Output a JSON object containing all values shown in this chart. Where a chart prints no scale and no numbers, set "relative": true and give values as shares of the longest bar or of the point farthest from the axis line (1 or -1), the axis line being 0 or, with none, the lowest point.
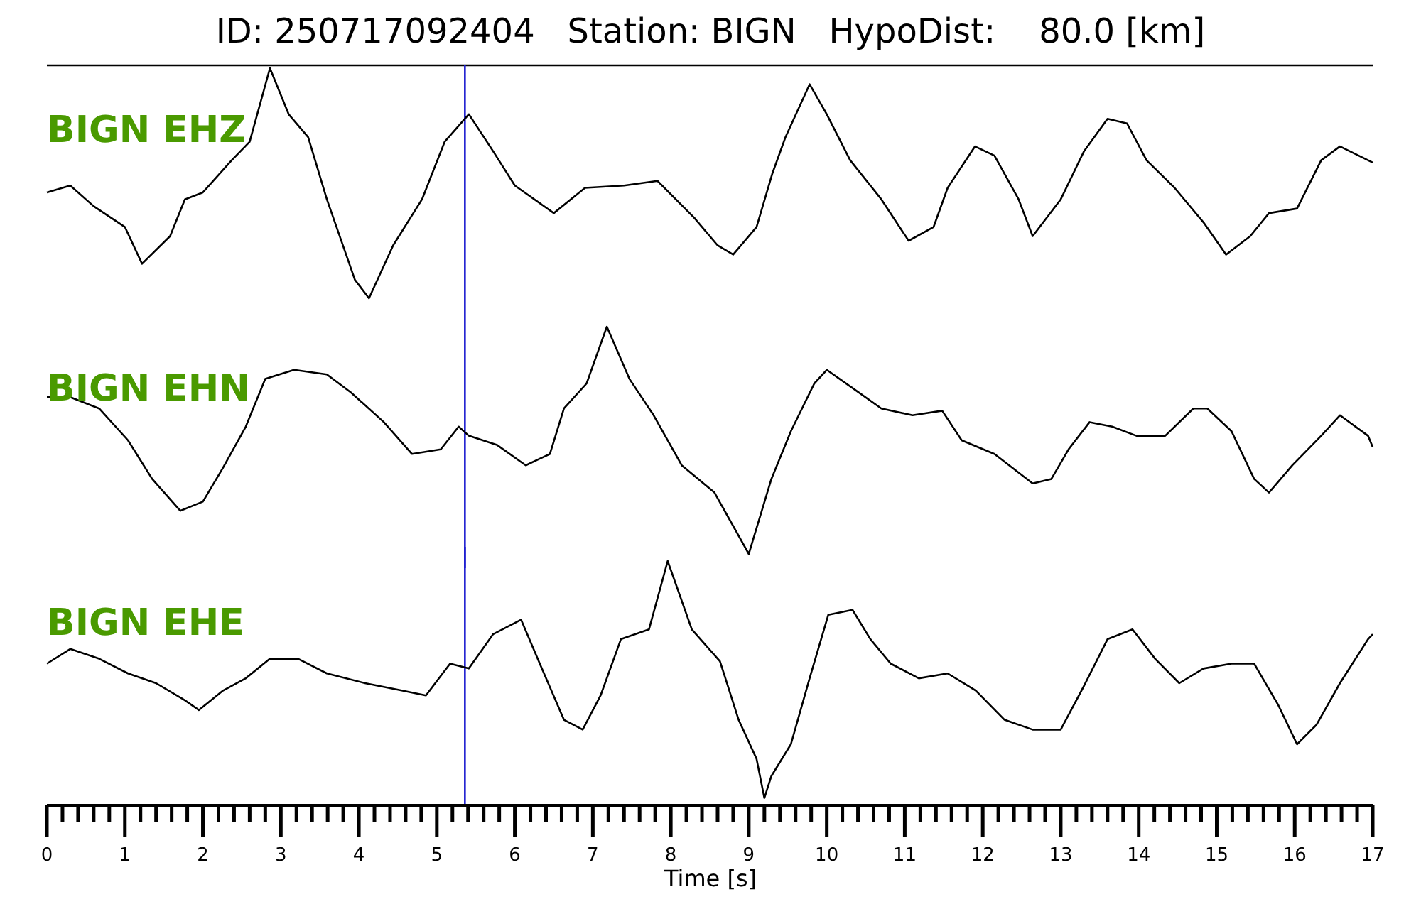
{
  "chart_data": [
    {
      "type": "line",
      "title": "ID: 250717092404   Station: BIGN   HypoDist:    80.0 [km]",
      "relative": true,
      "xlim": [
        0,
        17
      ],
      "tick_labels": false,
      "ref_lines": [
        {
          "axis": "x",
          "value": 5.36,
          "color": "#1f1fd0"
        }
      ],
      "series": [
        {
          "name": "BIGN EHZ",
          "color": "#000000",
          "x": [
            0,
            0.3,
            0.6,
            1.0,
            1.22,
            1.58,
            1.77,
            2.0,
            2.37,
            2.6,
            2.86,
            3.1,
            3.35,
            3.59,
            3.95,
            4.13,
            4.44,
            4.81,
            5.1,
            5.41,
            5.72,
            6.0,
            6.5,
            6.9,
            7.4,
            7.83,
            8.3,
            8.6,
            8.8,
            9.1,
            9.3,
            9.47,
            9.78,
            10.0,
            10.3,
            10.7,
            11.05,
            11.37,
            11.55,
            11.9,
            12.15,
            12.46,
            12.64,
            13.0,
            13.3,
            13.6,
            13.85,
            14.1,
            14.46,
            14.83,
            15.12,
            15.43,
            15.67,
            16.03,
            16.34,
            16.58,
            16.94,
            17
          ],
          "values": [
            0.46,
            0.49,
            0.4,
            0.31,
            0.15,
            0.27,
            0.43,
            0.46,
            0.6,
            0.68,
            1,
            0.8,
            0.7,
            0.43,
            0.08,
            0,
            0.23,
            0.43,
            0.68,
            0.8,
            0.64,
            0.49,
            0.37,
            0.48,
            0.49,
            0.51,
            0.35,
            0.23,
            0.19,
            0.31,
            0.54,
            0.7,
            0.93,
            0.8,
            0.6,
            0.43,
            0.25,
            0.31,
            0.48,
            0.66,
            0.62,
            0.43,
            0.27,
            0.43,
            0.64,
            0.78,
            0.76,
            0.6,
            0.48,
            0.33,
            0.19,
            0.27,
            0.37,
            0.39,
            0.6,
            0.66,
            0.6,
            0.59
          ]
        }
      ]
    },
    {
      "type": "line",
      "relative": true,
      "xlim": [
        0,
        17
      ],
      "tick_labels": false,
      "ref_lines": [
        {
          "axis": "x",
          "value": 5.36,
          "color": "#1f1fd0"
        }
      ],
      "series": [
        {
          "name": "BIGN EHN",
          "color": "#000000",
          "x": [
            0,
            0.3,
            0.67,
            1.04,
            1.35,
            1.71,
            2.0,
            2.26,
            2.55,
            2.8,
            3.17,
            3.59,
            3.9,
            4.32,
            4.68,
            5.05,
            5.28,
            5.41,
            5.77,
            6.14,
            6.45,
            6.63,
            6.92,
            7.18,
            7.47,
            7.78,
            8.14,
            8.56,
            9.0,
            9.29,
            9.54,
            9.84,
            10.0,
            10.33,
            10.7,
            11.1,
            11.48,
            11.73,
            12.15,
            12.64,
            12.88,
            13.1,
            13.37,
            13.66,
            13.97,
            14.34,
            14.7,
            14.88,
            15.19,
            15.48,
            15.67,
            15.97,
            16.34,
            16.58,
            16.94,
            17
          ],
          "values": [
            0.69,
            0.69,
            0.64,
            0.5,
            0.33,
            0.19,
            0.23,
            0.38,
            0.56,
            0.77,
            0.81,
            0.79,
            0.71,
            0.58,
            0.44,
            0.46,
            0.56,
            0.52,
            0.48,
            0.39,
            0.44,
            0.64,
            0.75,
            1,
            0.77,
            0.61,
            0.39,
            0.27,
            0,
            0.33,
            0.54,
            0.75,
            0.81,
            0.73,
            0.64,
            0.61,
            0.63,
            0.5,
            0.44,
            0.31,
            0.33,
            0.46,
            0.58,
            0.56,
            0.52,
            0.52,
            0.64,
            0.64,
            0.54,
            0.33,
            0.27,
            0.39,
            0.52,
            0.61,
            0.52,
            0.47
          ]
        }
      ]
    },
    {
      "type": "line",
      "relative": true,
      "xlim": [
        0,
        17
      ],
      "tick_labels": "x",
      "xlabel": "Time [s]",
      "xticks": [
        0,
        {
          "value": 0.2,
          "label": null
        },
        {
          "value": 0.4,
          "label": null
        },
        {
          "value": 0.6,
          "label": null
        },
        {
          "value": 0.8,
          "label": null
        },
        1,
        {
          "value": 1.2,
          "label": null
        },
        {
          "value": 1.4,
          "label": null
        },
        {
          "value": 1.6,
          "label": null
        },
        {
          "value": 1.8,
          "label": null
        },
        2,
        {
          "value": 2.2,
          "label": null
        },
        {
          "value": 2.4,
          "label": null
        },
        {
          "value": 2.6,
          "label": null
        },
        {
          "value": 2.8,
          "label": null
        },
        3,
        {
          "value": 3.2,
          "label": null
        },
        {
          "value": 3.4,
          "label": null
        },
        {
          "value": 3.6,
          "label": null
        },
        {
          "value": 3.8,
          "label": null
        },
        4,
        {
          "value": 4.2,
          "label": null
        },
        {
          "value": 4.4,
          "label": null
        },
        {
          "value": 4.6,
          "label": null
        },
        {
          "value": 4.8,
          "label": null
        },
        5,
        {
          "value": 5.2,
          "label": null
        },
        {
          "value": 5.4,
          "label": null
        },
        {
          "value": 5.6,
          "label": null
        },
        {
          "value": 5.8,
          "label": null
        },
        6,
        {
          "value": 6.2,
          "label": null
        },
        {
          "value": 6.4,
          "label": null
        },
        {
          "value": 6.6,
          "label": null
        },
        {
          "value": 6.8,
          "label": null
        },
        7,
        {
          "value": 7.2,
          "label": null
        },
        {
          "value": 7.4,
          "label": null
        },
        {
          "value": 7.6,
          "label": null
        },
        {
          "value": 7.8,
          "label": null
        },
        8,
        {
          "value": 8.2,
          "label": null
        },
        {
          "value": 8.4,
          "label": null
        },
        {
          "value": 8.6,
          "label": null
        },
        {
          "value": 8.8,
          "label": null
        },
        9,
        {
          "value": 9.2,
          "label": null
        },
        {
          "value": 9.4,
          "label": null
        },
        {
          "value": 9.6,
          "label": null
        },
        {
          "value": 9.8,
          "label": null
        },
        10,
        {
          "value": 10.2,
          "label": null
        },
        {
          "value": 10.4,
          "label": null
        },
        {
          "value": 10.6,
          "label": null
        },
        {
          "value": 10.8,
          "label": null
        },
        11,
        {
          "value": 11.2,
          "label": null
        },
        {
          "value": 11.4,
          "label": null
        },
        {
          "value": 11.6,
          "label": null
        },
        {
          "value": 11.8,
          "label": null
        },
        12,
        {
          "value": 12.2,
          "label": null
        },
        {
          "value": 12.4,
          "label": null
        },
        {
          "value": 12.6,
          "label": null
        },
        {
          "value": 12.8,
          "label": null
        },
        13,
        {
          "value": 13.2,
          "label": null
        },
        {
          "value": 13.4,
          "label": null
        },
        {
          "value": 13.6,
          "label": null
        },
        {
          "value": 13.8,
          "label": null
        },
        14,
        {
          "value": 14.2,
          "label": null
        },
        {
          "value": 14.4,
          "label": null
        },
        {
          "value": 14.6,
          "label": null
        },
        {
          "value": 14.8,
          "label": null
        },
        15,
        {
          "value": 15.2,
          "label": null
        },
        {
          "value": 15.4,
          "label": null
        },
        {
          "value": 15.6,
          "label": null
        },
        {
          "value": 15.8,
          "label": null
        },
        16,
        {
          "value": 16.2,
          "label": null
        },
        {
          "value": 16.4,
          "label": null
        },
        {
          "value": 16.6,
          "label": null
        },
        {
          "value": 16.8,
          "label": null
        },
        17
      ],
      "ref_lines": [
        {
          "axis": "x",
          "value": 5.36,
          "color": "#1f1fd0"
        }
      ],
      "series": [
        {
          "name": "BIGN EHE",
          "color": "#000000",
          "x": [
            0,
            0.3,
            0.67,
            1.04,
            1.4,
            1.77,
            1.95,
            2.26,
            2.55,
            2.86,
            3.22,
            3.59,
            4.08,
            4.55,
            4.86,
            5.17,
            5.41,
            5.72,
            6.08,
            6.32,
            6.63,
            6.87,
            7.1,
            7.36,
            7.72,
            7.96,
            8.27,
            8.63,
            8.87,
            9.1,
            9.2,
            9.29,
            9.54,
            9.78,
            10.02,
            10.33,
            10.56,
            10.82,
            11.18,
            11.55,
            11.91,
            12.28,
            12.64,
            13.0,
            13.3,
            13.6,
            13.92,
            14.21,
            14.52,
            14.83,
            15.19,
            15.48,
            15.79,
            16.03,
            16.28,
            16.58,
            16.94,
            17
          ],
          "values": [
            0.58,
            0.64,
            0.6,
            0.54,
            0.5,
            0.43,
            0.39,
            0.47,
            0.52,
            0.6,
            0.6,
            0.54,
            0.5,
            0.47,
            0.45,
            0.58,
            0.56,
            0.7,
            0.76,
            0.58,
            0.35,
            0.31,
            0.45,
            0.68,
            0.72,
            1,
            0.72,
            0.59,
            0.35,
            0.19,
            0.03,
            0.12,
            0.25,
            0.52,
            0.78,
            0.8,
            0.68,
            0.58,
            0.52,
            0.54,
            0.47,
            0.35,
            0.31,
            0.31,
            0.49,
            0.68,
            0.72,
            0.6,
            0.5,
            0.56,
            0.58,
            0.58,
            0.41,
            0.25,
            0.33,
            0.5,
            0.68,
            0.7
          ]
        }
      ]
    }
  ]
}
